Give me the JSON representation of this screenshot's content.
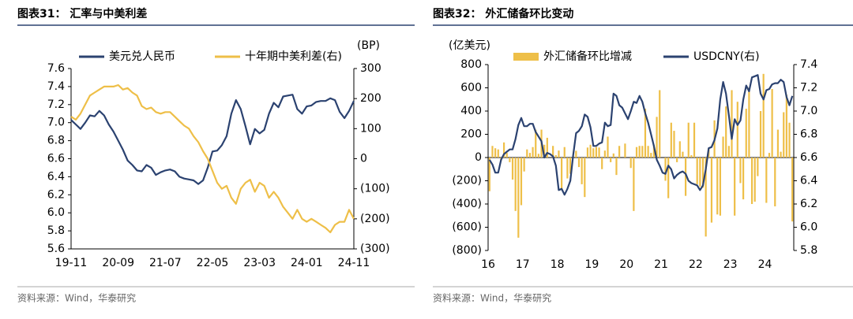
{
  "chart_data": [
    {
      "type": "line",
      "title": "图表31：  汇率与中美利差",
      "source": "资料来源：Wind，华泰研究",
      "y2_label": "(BP)",
      "categories": [
        "19-11",
        null,
        null,
        null,
        null,
        null,
        null,
        null,
        null,
        null,
        "20-09",
        null,
        null,
        null,
        null,
        null,
        null,
        null,
        null,
        null,
        "21-07",
        null,
        null,
        null,
        null,
        null,
        null,
        null,
        null,
        null,
        "22-05",
        null,
        null,
        null,
        null,
        null,
        null,
        null,
        null,
        null,
        "23-03",
        null,
        null,
        null,
        null,
        null,
        null,
        null,
        null,
        null,
        "24-01",
        null,
        null,
        null,
        null,
        null,
        null,
        null,
        null,
        null,
        "24-11"
      ],
      "series": [
        {
          "name": "美元兑人民币",
          "color": "#2b4270",
          "values": [
            7.03,
            6.98,
            6.93,
            7.0,
            7.08,
            7.07,
            7.13,
            7.08,
            6.98,
            6.9,
            6.8,
            6.7,
            6.58,
            6.53,
            6.47,
            6.46,
            6.53,
            6.5,
            6.42,
            6.45,
            6.47,
            6.48,
            6.46,
            6.4,
            6.38,
            6.37,
            6.36,
            6.32,
            6.36,
            6.5,
            6.68,
            6.69,
            6.75,
            6.85,
            7.1,
            7.25,
            7.15,
            6.96,
            6.76,
            6.93,
            6.88,
            6.92,
            7.1,
            7.22,
            7.17,
            7.29,
            7.3,
            7.31,
            7.15,
            7.1,
            7.18,
            7.19,
            7.23,
            7.24,
            7.24,
            7.27,
            7.25,
            7.12,
            7.05,
            7.13,
            7.24
          ]
        },
        {
          "name": "十年期中美利差(右)",
          "color": "#eebf48",
          "axis": "y2",
          "values": [
            140,
            130,
            150,
            180,
            210,
            220,
            230,
            240,
            240,
            240,
            245,
            230,
            235,
            220,
            210,
            175,
            165,
            170,
            155,
            150,
            155,
            155,
            140,
            125,
            110,
            100,
            75,
            55,
            25,
            0,
            -40,
            -80,
            -100,
            -90,
            -130,
            -150,
            -100,
            -80,
            -70,
            -110,
            -80,
            -90,
            -130,
            -110,
            -130,
            -160,
            -180,
            -200,
            -170,
            -200,
            -210,
            -200,
            -210,
            -220,
            -230,
            -245,
            -220,
            -210,
            -210,
            -170,
            -200
          ]
        }
      ],
      "ylim": [
        5.6,
        7.6
      ],
      "yticks": [
        5.6,
        5.8,
        {
          "value": 6,
          "label": "6.0"
        },
        6.2,
        6.4,
        6.6,
        6.8,
        {
          "value": 7,
          "label": "7.0"
        },
        7.2,
        7.4,
        7.6
      ],
      "y2lim": [
        -300,
        300
      ],
      "y2ticks": [
        {
          "value": -300,
          "label": "(300)"
        },
        {
          "value": -200,
          "label": "(200)"
        },
        {
          "value": -100,
          "label": "(100)"
        },
        0,
        100,
        200,
        300
      ]
    },
    {
      "type": "combo",
      "title": "图表32：  外汇储备环比变动",
      "source": "资料来源：Wind，华泰研究",
      "y_label": "(亿美元)",
      "categories": [
        "16",
        null,
        null,
        null,
        null,
        null,
        null,
        null,
        null,
        null,
        null,
        null,
        "17",
        null,
        null,
        null,
        null,
        null,
        null,
        null,
        null,
        null,
        null,
        null,
        "18",
        null,
        null,
        null,
        null,
        null,
        null,
        null,
        null,
        null,
        null,
        null,
        "19",
        null,
        null,
        null,
        null,
        null,
        null,
        null,
        null,
        null,
        null,
        null,
        "20",
        null,
        null,
        null,
        null,
        null,
        null,
        null,
        null,
        null,
        null,
        null,
        "21",
        null,
        null,
        null,
        null,
        null,
        null,
        null,
        null,
        null,
        null,
        null,
        "22",
        null,
        null,
        null,
        null,
        null,
        null,
        null,
        null,
        null,
        null,
        null,
        "23",
        null,
        null,
        null,
        null,
        null,
        null,
        null,
        null,
        null,
        null,
        null,
        "24",
        null,
        null,
        null,
        null,
        null,
        null,
        null,
        null,
        null
      ],
      "series": [
        {
          "name": "外汇储备环比增减",
          "type": "bar",
          "color": "#eebf48",
          "values": [
            -290,
            100,
            80,
            70,
            -30,
            130,
            40,
            -40,
            -190,
            -460,
            -690,
            -410,
            -120,
            70,
            40,
            90,
            240,
            32,
            240,
            110,
            170,
            0,
            100,
            20,
            60,
            -270,
            90,
            -180,
            -140,
            15,
            58,
            -82,
            -230,
            -340,
            86,
            110,
            80,
            90,
            86,
            -100,
            60,
            180,
            -40,
            35,
            -150,
            100,
            0,
            120,
            0,
            -90,
            -460,
            90,
            100,
            100,
            420,
            100,
            40,
            110,
            350,
            580,
            0,
            -200,
            -350,
            300,
            230,
            -40,
            140,
            50,
            -330,
            300,
            20,
            300,
            -230,
            -250,
            -260,
            -680,
            80,
            -560,
            320,
            -490,
            -500,
            180,
            440,
            100,
            580,
            -500,
            480,
            -220,
            -360,
            420,
            600,
            -400,
            -380,
            -160,
            400,
            720,
            -390,
            40,
            590,
            -420,
            240,
            50,
            390,
            540,
            300,
            -550
          ]
        },
        {
          "name": "USDCNY(右)",
          "type": "line",
          "color": "#2b4270",
          "axis": "y2",
          "values": [
            6.58,
            6.54,
            6.47,
            6.47,
            6.58,
            6.63,
            6.65,
            6.67,
            6.67,
            6.76,
            6.88,
            6.94,
            6.87,
            6.87,
            6.89,
            6.89,
            6.82,
            6.78,
            6.74,
            6.6,
            6.64,
            6.63,
            6.61,
            6.53,
            6.32,
            6.33,
            6.28,
            6.33,
            6.4,
            6.62,
            6.81,
            6.83,
            6.87,
            6.97,
            6.95,
            6.86,
            6.7,
            6.7,
            6.72,
            6.73,
            6.9,
            6.87,
            6.88,
            7.15,
            7.13,
            7.05,
            7.03,
            6.98,
            6.93,
            7.0,
            7.08,
            7.07,
            7.13,
            7.08,
            6.98,
            6.9,
            6.8,
            6.7,
            6.58,
            6.53,
            6.47,
            6.46,
            6.53,
            6.5,
            6.42,
            6.45,
            6.47,
            6.48,
            6.46,
            6.4,
            6.38,
            6.37,
            6.36,
            6.32,
            6.36,
            6.5,
            6.68,
            6.69,
            6.75,
            6.85,
            7.1,
            7.25,
            7.15,
            6.96,
            6.76,
            6.93,
            6.88,
            6.92,
            7.1,
            7.22,
            7.17,
            7.29,
            7.3,
            7.31,
            7.15,
            7.1,
            7.18,
            7.19,
            7.23,
            7.24,
            7.24,
            7.27,
            7.25,
            7.12,
            7.05,
            7.13
          ]
        }
      ],
      "ylim": [
        -800,
        800
      ],
      "yticks": [
        {
          "value": -800,
          "label": "(800)"
        },
        {
          "value": -600,
          "label": "(600)"
        },
        {
          "value": -400,
          "label": "(400)"
        },
        {
          "value": -200,
          "label": "(200)"
        },
        0,
        200,
        400,
        600,
        800
      ],
      "y2lim": [
        5.8,
        7.4
      ],
      "y2ticks": [
        5.8,
        {
          "value": 6,
          "label": "6.0"
        },
        6.2,
        6.4,
        6.6,
        6.8,
        {
          "value": 7,
          "label": "7.0"
        },
        7.2,
        7.4
      ]
    }
  ]
}
